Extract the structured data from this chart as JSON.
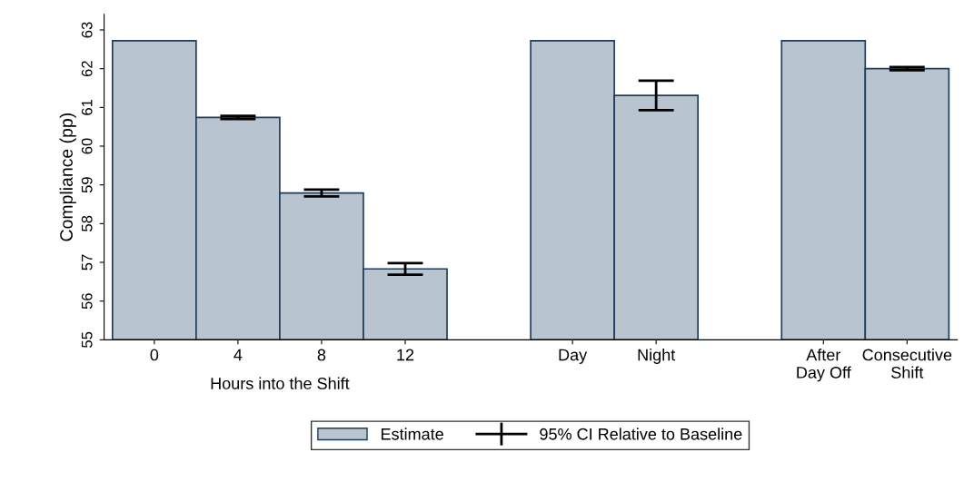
{
  "chart_data": {
    "type": "bar",
    "ylabel": "Compliance (pp)",
    "xlabel": "Hours into the Shift",
    "categories": [
      "0",
      "4",
      "8",
      "12",
      null,
      "Day",
      "Night",
      null,
      "After\nDay Off",
      "Consecutive\nShift"
    ],
    "series": [
      {
        "name": "Estimate",
        "color": "#b8c4d0",
        "values": [
          62.72,
          60.74,
          58.79,
          56.83,
          null,
          62.72,
          61.31,
          null,
          62.72,
          62.0
        ],
        "errors": [
          null,
          0.04,
          0.09,
          0.15,
          null,
          null,
          0.38,
          null,
          null,
          0.04
        ]
      }
    ],
    "annotations": [
      "95% CI Relative to Baseline"
    ],
    "ylim": [
      55,
      63.4
    ],
    "yticks": [
      55,
      56,
      57,
      58,
      59,
      60,
      61,
      62,
      63
    ],
    "grid": false,
    "legend": "bottom"
  }
}
